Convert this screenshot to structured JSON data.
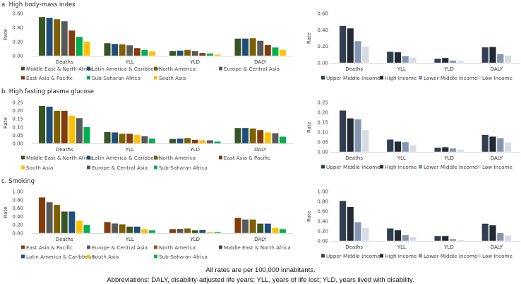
{
  "colors": {
    "Middle East & North Africa": "#375623",
    "Latin America & Caribbean": "#1F4E79",
    "North America": "#7F6000",
    "Europe & Central Asia": "#595959",
    "East Asia & Pacific": "#843C0C",
    "Sub-Saharan Africa": "#00B050",
    "South Asia": "#FFC000",
    "Upper Middle Income": "#333F50",
    "High Income": "#222A35",
    "Lower Middle Income": "#8497B0",
    "Low Income": "#D6DCE4"
  },
  "panel_titles": [
    "a. High body-mass index",
    "b. High fasting plasma glucose",
    "c. Smoking"
  ],
  "chart_data": [
    {
      "type": "bar",
      "panel": "a",
      "title": "a. High body-mass index",
      "ylabel": "Rate",
      "ylim": [
        0,
        0.6
      ],
      "yticks": [
        "0.00",
        "0.20",
        "0.40",
        "0.60"
      ],
      "categories": [
        "Deaths",
        "YLL",
        "YLD",
        "DALY"
      ],
      "legend": "bottom",
      "series": [
        {
          "name": "Middle East & North Africa",
          "values": [
            0.55,
            0.18,
            0.07,
            0.245
          ]
        },
        {
          "name": "Latin America & Caribbean",
          "values": [
            0.54,
            0.17,
            0.075,
            0.245
          ]
        },
        {
          "name": "North America",
          "values": [
            0.52,
            0.165,
            0.085,
            0.25
          ]
        },
        {
          "name": "Europe & Central Asia",
          "values": [
            0.49,
            0.15,
            0.07,
            0.215
          ]
        },
        {
          "name": "East Asia & Pacific",
          "values": [
            0.36,
            0.11,
            0.04,
            0.155
          ]
        },
        {
          "name": "Sub-Saharan Africa",
          "values": [
            0.27,
            0.085,
            0.035,
            0.12
          ]
        },
        {
          "name": "South Asia",
          "values": [
            0.2,
            0.065,
            0.02,
            0.085
          ]
        }
      ]
    },
    {
      "type": "bar",
      "panel": "a",
      "ylabel": "Rate",
      "ylim": [
        0,
        0.6
      ],
      "yticks": [
        "0.00",
        "0.20",
        "0.40",
        "0.60"
      ],
      "categories": [
        "Deaths",
        "YLL",
        "YLD",
        "DALY"
      ],
      "legend": "bottom",
      "series": [
        {
          "name": "Upper Middle Income",
          "values": [
            0.45,
            0.137,
            0.052,
            0.19
          ]
        },
        {
          "name": "High Income",
          "values": [
            0.42,
            0.13,
            0.06,
            0.195
          ]
        },
        {
          "name": "Lower Middle Income",
          "values": [
            0.265,
            0.085,
            0.03,
            0.11
          ]
        },
        {
          "name": "Low Income",
          "values": [
            0.2,
            0.065,
            0.023,
            0.09
          ]
        }
      ]
    },
    {
      "type": "bar",
      "panel": "b",
      "title": "b. High fasting plasma glucose",
      "ylabel": "Rate",
      "ylim": [
        0,
        0.25
      ],
      "yticks": [
        "0.00",
        "0.05",
        "0.10",
        "0.15",
        "0.20",
        "0.25"
      ],
      "categories": [
        "Deaths",
        "YLL",
        "YLD",
        "DALY"
      ],
      "legend": "bottom",
      "series": [
        {
          "name": "Middle East & North Africa",
          "values": [
            0.23,
            0.07,
            0.028,
            0.095
          ]
        },
        {
          "name": "Latin America & Caribbean",
          "values": [
            0.225,
            0.068,
            0.03,
            0.095
          ]
        },
        {
          "name": "North America",
          "values": [
            0.2,
            0.06,
            0.034,
            0.092
          ]
        },
        {
          "name": "East Asia & Pacific",
          "values": [
            0.2,
            0.06,
            0.023,
            0.082
          ]
        },
        {
          "name": "South Asia",
          "values": [
            0.17,
            0.053,
            0.02,
            0.068
          ]
        },
        {
          "name": "Europe & Central Asia",
          "values": [
            0.155,
            0.045,
            0.02,
            0.063
          ]
        },
        {
          "name": "Sub-Saharan Africa",
          "values": [
            0.1,
            0.03,
            0.012,
            0.042
          ]
        }
      ]
    },
    {
      "type": "bar",
      "panel": "b",
      "ylabel": "Rate",
      "ylim": [
        0,
        0.25
      ],
      "yticks": [
        "0.00",
        "0.05",
        "0.10",
        "0.15",
        "0.20",
        "0.25"
      ],
      "categories": [
        "Deaths",
        "YLL",
        "YLD",
        "DALY"
      ],
      "legend": "bottom",
      "series": [
        {
          "name": "Upper Middle Income",
          "values": [
            0.21,
            0.063,
            0.022,
            0.087
          ]
        },
        {
          "name": "High Income",
          "values": [
            0.17,
            0.053,
            0.024,
            0.078
          ]
        },
        {
          "name": "Lower Middle Income",
          "values": [
            0.165,
            0.05,
            0.018,
            0.07
          ]
        },
        {
          "name": "Low Income",
          "values": [
            0.11,
            0.035,
            0.012,
            0.048
          ]
        }
      ]
    },
    {
      "type": "bar",
      "panel": "c",
      "title": "c. Smoking",
      "ylabel": "Rate",
      "ylim": [
        0,
        1.0
      ],
      "yticks": [
        "0.00",
        "0.20",
        "0.40",
        "0.60",
        "0.80",
        "1.00"
      ],
      "categories": [
        "Deaths",
        "YLL",
        "YLD",
        "DALY"
      ],
      "legend": "bottom",
      "series": [
        {
          "name": "East Asia & Pacific",
          "values": [
            0.86,
            0.27,
            0.1,
            0.37
          ]
        },
        {
          "name": "Europe & Central Asia",
          "values": [
            0.745,
            0.235,
            0.105,
            0.33
          ]
        },
        {
          "name": "North America",
          "values": [
            0.68,
            0.215,
            0.115,
            0.33
          ]
        },
        {
          "name": "Middle East & North Africa",
          "values": [
            0.52,
            0.16,
            0.07,
            0.23
          ]
        },
        {
          "name": "Latin America & Caribbean",
          "values": [
            0.52,
            0.16,
            0.08,
            0.23
          ]
        },
        {
          "name": "South Asia",
          "values": [
            0.3,
            0.1,
            0.03,
            0.13
          ]
        },
        {
          "name": "Sub-Saharan Africa",
          "values": [
            0.2,
            0.07,
            0.03,
            0.1
          ]
        }
      ]
    },
    {
      "type": "bar",
      "panel": "c",
      "ylabel": "Rate",
      "ylim": [
        0,
        1.0
      ],
      "yticks": [
        "0.00",
        "0.20",
        "0.40",
        "0.60",
        "0.80",
        "1.00"
      ],
      "categories": [
        "Deaths",
        "YLL",
        "YLD",
        "DALY"
      ],
      "legend": "bottom",
      "series": [
        {
          "name": "Upper Middle Income",
          "values": [
            0.81,
            0.255,
            0.1,
            0.35
          ]
        },
        {
          "name": "High Income",
          "values": [
            0.69,
            0.22,
            0.1,
            0.32
          ]
        },
        {
          "name": "Lower Middle Income",
          "values": [
            0.38,
            0.12,
            0.04,
            0.16
          ]
        },
        {
          "name": "Low Income",
          "values": [
            0.26,
            0.08,
            0.02,
            0.11
          ]
        }
      ]
    }
  ],
  "footer": {
    "note": "All rates are per 100,000 inhabitants.",
    "abbreviations": "Abbreviations: DALY, disability-adjusted life years; YLL, years of life lost; YLD, years lived with disability."
  }
}
